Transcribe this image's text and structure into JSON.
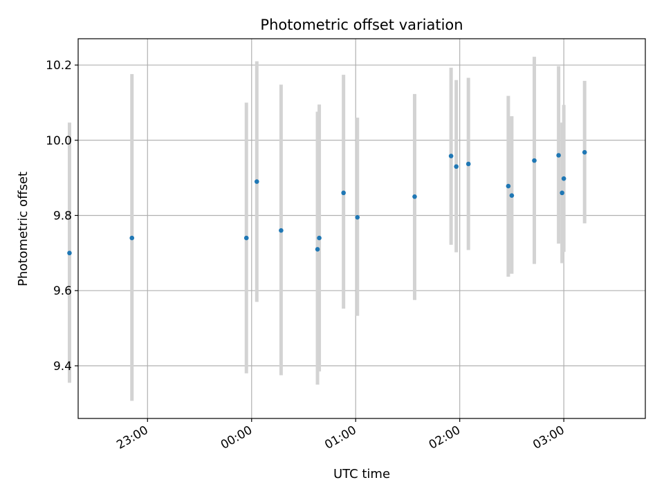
{
  "chart_data": {
    "type": "scatter",
    "title": "Photometric offset variation",
    "xlabel": "UTC time",
    "ylabel": "Photometric offset",
    "x_tick_labels": [
      "23:00",
      "00:00",
      "01:00",
      "02:00",
      "03:00"
    ],
    "x_tick_values": [
      "23:00",
      "00:00",
      "01:00",
      "02:00",
      "03:00"
    ],
    "y_ticks": [
      9.4,
      9.6,
      9.8,
      10.0,
      10.2
    ],
    "y_tick_labels": [
      "9.4",
      "9.6",
      "9.8",
      "10.0",
      "10.2"
    ],
    "xlim": [
      "22:20",
      "03:47"
    ],
    "ylim": [
      9.26,
      10.27
    ],
    "grid": true,
    "colors": {
      "point": "#1f77b4",
      "errorbar": "#d3d3d3",
      "grid": "#b0b0b0"
    },
    "points": [
      {
        "x": "22:15",
        "y": 9.7,
        "ylow": 9.355,
        "yhigh": 10.047
      },
      {
        "x": "22:51",
        "y": 9.74,
        "ylow": 9.307,
        "yhigh": 10.176
      },
      {
        "x": "23:57",
        "y": 9.74,
        "ylow": 9.38,
        "yhigh": 10.1
      },
      {
        "x": "00:03",
        "y": 9.89,
        "ylow": 9.57,
        "yhigh": 10.21
      },
      {
        "x": "00:17",
        "y": 9.76,
        "ylow": 9.375,
        "yhigh": 10.148
      },
      {
        "x": "00:38",
        "y": 9.71,
        "ylow": 9.35,
        "yhigh": 10.076
      },
      {
        "x": "00:39",
        "y": 9.74,
        "ylow": 9.385,
        "yhigh": 10.095
      },
      {
        "x": "00:53",
        "y": 9.86,
        "ylow": 9.552,
        "yhigh": 10.174
      },
      {
        "x": "01:01",
        "y": 9.795,
        "ylow": 9.533,
        "yhigh": 10.06
      },
      {
        "x": "01:34",
        "y": 9.85,
        "ylow": 9.575,
        "yhigh": 10.123
      },
      {
        "x": "01:55",
        "y": 9.958,
        "ylow": 9.722,
        "yhigh": 10.193
      },
      {
        "x": "01:58",
        "y": 9.93,
        "ylow": 9.702,
        "yhigh": 10.16
      },
      {
        "x": "02:05",
        "y": 9.937,
        "ylow": 9.708,
        "yhigh": 10.166
      },
      {
        "x": "02:28",
        "y": 9.878,
        "ylow": 9.637,
        "yhigh": 10.118
      },
      {
        "x": "02:30",
        "y": 9.853,
        "ylow": 9.645,
        "yhigh": 10.064
      },
      {
        "x": "02:43",
        "y": 9.946,
        "ylow": 9.671,
        "yhigh": 10.222
      },
      {
        "x": "02:57",
        "y": 9.96,
        "ylow": 9.725,
        "yhigh": 10.197
      },
      {
        "x": "02:59",
        "y": 9.86,
        "ylow": 9.673,
        "yhigh": 10.047
      },
      {
        "x": "03:00",
        "y": 9.898,
        "ylow": 9.703,
        "yhigh": 10.094
      },
      {
        "x": "03:12",
        "y": 9.968,
        "ylow": 9.779,
        "yhigh": 10.158
      }
    ]
  }
}
